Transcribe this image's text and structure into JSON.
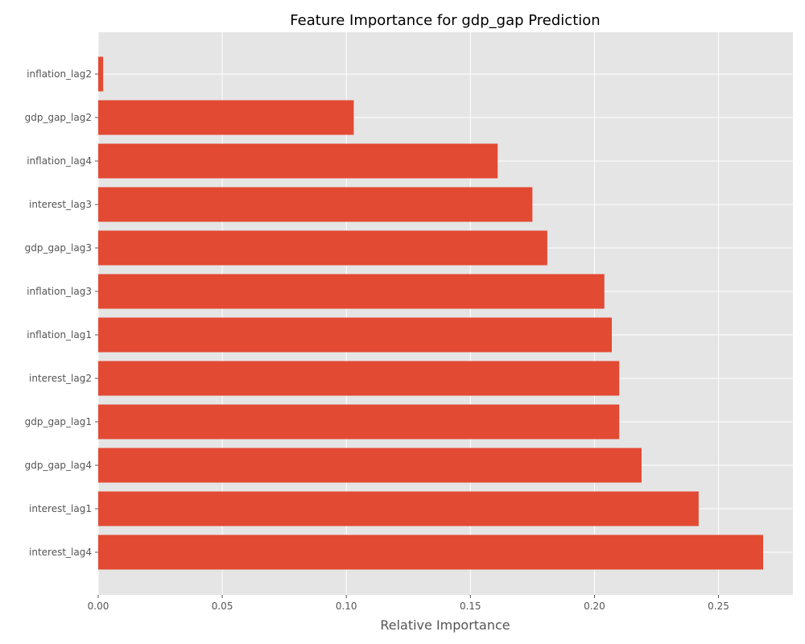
{
  "chart_data": {
    "type": "bar",
    "orientation": "horizontal",
    "title": "Feature Importance for gdp_gap Prediction",
    "xlabel": "Relative Importance",
    "ylabel": "",
    "xlim": [
      0,
      0.28
    ],
    "x_ticks": [
      {
        "value": 0.0,
        "label": "0.00"
      },
      {
        "value": 0.05,
        "label": "0.05"
      },
      {
        "value": 0.1,
        "label": "0.10"
      },
      {
        "value": 0.15,
        "label": "0.15"
      },
      {
        "value": 0.2,
        "label": "0.20"
      },
      {
        "value": 0.25,
        "label": "0.25"
      }
    ],
    "categories": [
      "inflation_lag2",
      "gdp_gap_lag2",
      "inflation_lag4",
      "interest_lag3",
      "gdp_gap_lag3",
      "inflation_lag3",
      "inflation_lag1",
      "interest_lag2",
      "gdp_gap_lag1",
      "gdp_gap_lag4",
      "interest_lag1",
      "interest_lag4"
    ],
    "values": [
      0.002,
      0.103,
      0.161,
      0.175,
      0.181,
      0.204,
      0.207,
      0.21,
      0.21,
      0.219,
      0.242,
      0.268
    ],
    "grid": true,
    "bar_color": "#E24A33",
    "background_color": "#E5E5E5",
    "grid_color": "#FFFFFF"
  }
}
